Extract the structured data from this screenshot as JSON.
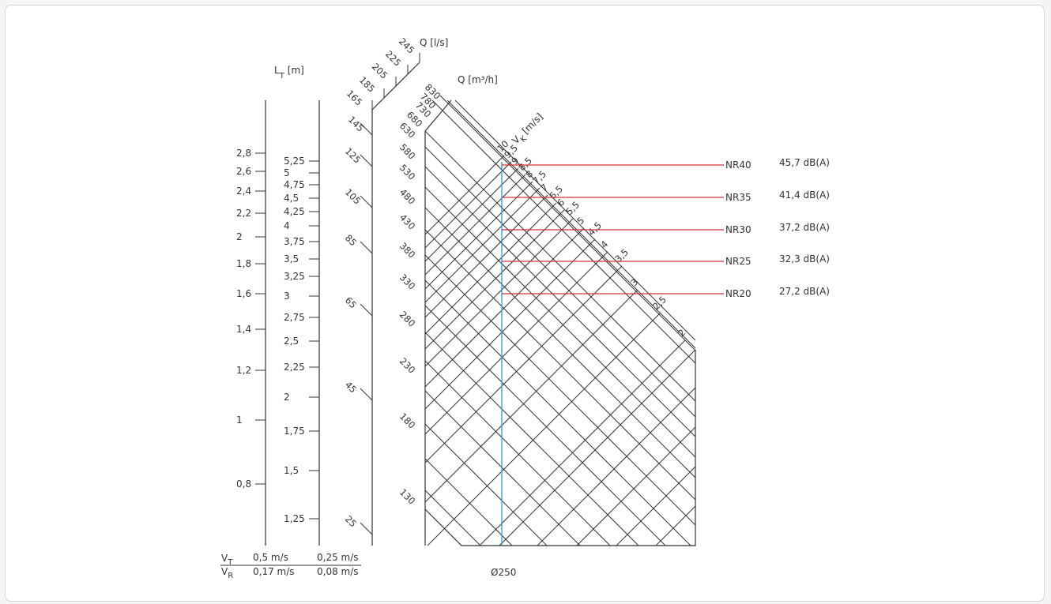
{
  "chart_data": {
    "type": "nomogram",
    "diameter_label": "Ø250",
    "lt_axis": {
      "title_main": "L",
      "title_sub": "T",
      "title_unit": "[m]",
      "left_ticks": [
        "2,8",
        "2,6",
        "2,4",
        "2,2",
        "2",
        "1,8",
        "1,6",
        "1,4",
        "1,2",
        "1",
        "0,8"
      ],
      "right_ticks": [
        "5,25",
        "5",
        "4,75",
        "4,5",
        "4,25",
        "4",
        "3,75",
        "3,5",
        "3,25",
        "3",
        "2,75",
        "2,5",
        "2,25",
        "2",
        "1,75",
        "1,5",
        "1,25"
      ]
    },
    "q_ls_axis": {
      "title": "Q [l/s]",
      "ticks": [
        "245",
        "225",
        "205",
        "185",
        "165",
        "145",
        "125",
        "105",
        "85",
        "65",
        "45",
        "25"
      ]
    },
    "q_m3h_axis": {
      "title": "Q [m³/h]",
      "ticks": [
        "830",
        "780",
        "730",
        "680",
        "630",
        "580",
        "530",
        "480",
        "430",
        "380",
        "330",
        "280",
        "230",
        "180",
        "130"
      ]
    },
    "velocity_axis": {
      "title_main": "V",
      "title_sub": "K",
      "title_unit": "[m/s]",
      "ticks": [
        "10",
        "9,5",
        "9",
        "8,5",
        "8",
        "7,5",
        "7",
        "6,5",
        "6",
        "5,5",
        "5",
        "4,5",
        "4",
        "3,5",
        "3",
        "2,5",
        "2"
      ]
    },
    "noise_levels": [
      {
        "label": "NR40",
        "value": "45,7 dB(A)"
      },
      {
        "label": "NR35",
        "value": "41,4 dB(A)"
      },
      {
        "label": "NR30",
        "value": "37,2 dB(A)"
      },
      {
        "label": "NR25",
        "value": "32,3 dB(A)"
      },
      {
        "label": "NR20",
        "value": "27,2 dB(A)"
      }
    ],
    "throw_legend": {
      "vt_main": "V",
      "vt_sub": "T",
      "vr_main": "V",
      "vr_sub": "R",
      "vt_values": [
        "0,5 m/s",
        "0,25 m/s"
      ],
      "vr_values": [
        "0,17 m/s",
        "0,08 m/s"
      ]
    },
    "colors": {
      "lines": "#333333",
      "noise_lines": "#d0313b",
      "diameter_line": "#3fa3cf"
    }
  }
}
